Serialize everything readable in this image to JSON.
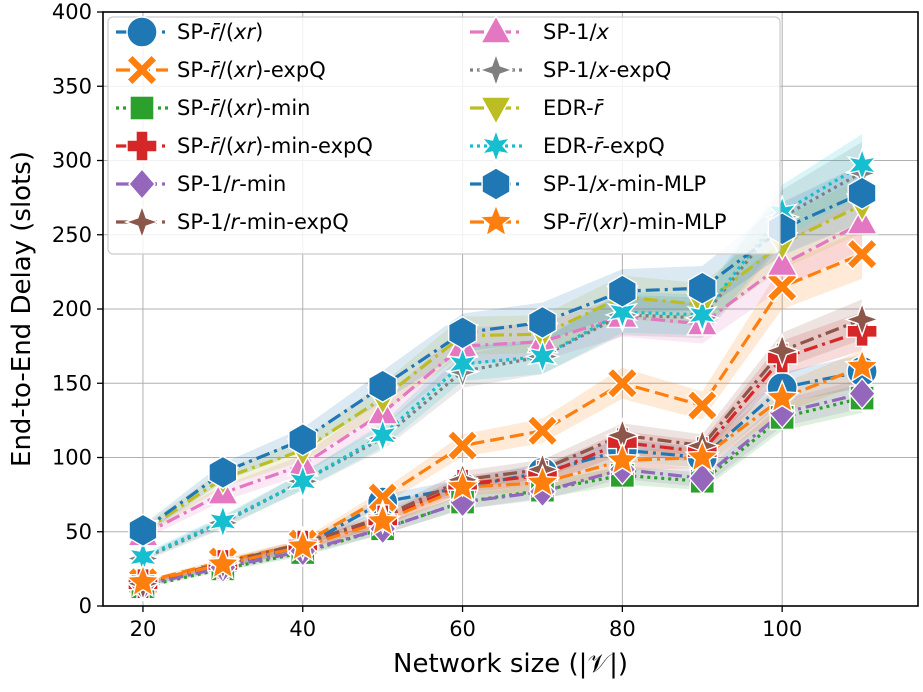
{
  "chart_data": {
    "type": "line",
    "xlabel": "Network size (|𝒱|)",
    "ylabel": "End-to-End Delay (slots)",
    "xlim": [
      15,
      117
    ],
    "ylim": [
      0,
      400
    ],
    "xticks": [
      "20",
      "40",
      "60",
      "80",
      "100"
    ],
    "yticks": [
      "0",
      "50",
      "100",
      "150",
      "200",
      "250",
      "300",
      "350",
      "400"
    ],
    "grid": true,
    "legend_placement": "top-left, two columns",
    "x": [
      20,
      30,
      40,
      50,
      60,
      70,
      80,
      90,
      100,
      110
    ],
    "series": [
      {
        "name": "SP-r̄/(xr)",
        "color": "#1f77b4",
        "marker": "circle",
        "dash": "dashdot",
        "values": [
          14,
          27,
          40,
          70,
          80,
          90,
          105,
          100,
          147,
          158
        ]
      },
      {
        "name": "SP-r̄/(xr)-expQ",
        "color": "#ff7f0e",
        "marker": "x",
        "dash": "dash",
        "values": [
          16,
          30,
          42,
          73,
          108,
          118,
          150,
          135,
          215,
          237
        ]
      },
      {
        "name": "SP-r̄/(xr)-min",
        "color": "#2ca02c",
        "marker": "square",
        "dash": "dot",
        "values": [
          13,
          25,
          36,
          52,
          70,
          78,
          88,
          84,
          127,
          140
        ]
      },
      {
        "name": "SP-r̄/(xr)-min-expQ",
        "color": "#d62728",
        "marker": "plus",
        "dash": "dashdot",
        "values": [
          15,
          28,
          41,
          58,
          82,
          88,
          110,
          104,
          167,
          185
        ]
      },
      {
        "name": "SP-1/r-min",
        "color": "#9467bd",
        "marker": "diamond",
        "dash": "dashdot",
        "values": [
          14,
          26,
          37,
          52,
          70,
          77,
          92,
          86,
          130,
          143
        ]
      },
      {
        "name": "SP-1/r-min-expQ",
        "color": "#8c564b",
        "marker": "star4",
        "dash": "dashdot",
        "values": [
          15,
          29,
          42,
          60,
          85,
          92,
          115,
          108,
          172,
          193
        ]
      },
      {
        "name": "SP-1/x",
        "color": "#e377c2",
        "marker": "triangle-up",
        "dash": "dashdot",
        "values": [
          48,
          76,
          95,
          130,
          175,
          178,
          195,
          190,
          230,
          258
        ]
      },
      {
        "name": "SP-1/x-expQ",
        "color": "#7f7f7f",
        "marker": "star4",
        "dash": "dot",
        "values": [
          32,
          56,
          84,
          113,
          158,
          168,
          196,
          194,
          262,
          292
        ]
      },
      {
        "name": "EDR-r̄",
        "color": "#bcbd22",
        "marker": "triangle-down",
        "dash": "dashdot",
        "values": [
          50,
          86,
          105,
          140,
          182,
          183,
          208,
          203,
          244,
          270
        ]
      },
      {
        "name": "EDR-r̄-expQ",
        "color": "#17becf",
        "marker": "star6",
        "dash": "dot",
        "values": [
          33,
          57,
          84,
          115,
          163,
          168,
          198,
          196,
          265,
          297
        ]
      },
      {
        "name": "SP-1/x-min-MLP",
        "color": "#1f77b4",
        "marker": "hexagon",
        "dash": "dashdot",
        "values": [
          51,
          90,
          112,
          148,
          184,
          191,
          212,
          214,
          254,
          278
        ]
      },
      {
        "name": "SP-r̄/(xr)-min-MLP",
        "color": "#ff7f0e",
        "marker": "star5",
        "dash": "dashdot",
        "values": [
          16,
          28,
          40,
          57,
          80,
          83,
          98,
          100,
          140,
          161
        ]
      }
    ]
  }
}
